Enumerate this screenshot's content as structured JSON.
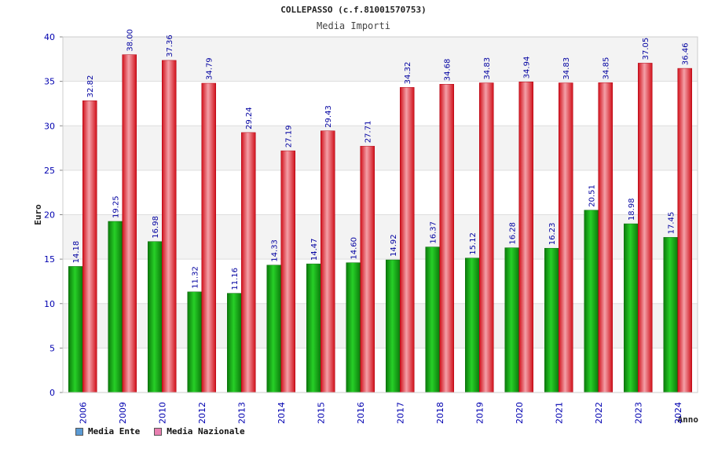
{
  "chart_data": {
    "type": "bar",
    "title": "COLLEPASSO (c.f.81001570753)",
    "subtitle": "Media Importi",
    "ylabel": "Euro",
    "xlabel": "Anno",
    "ylim": [
      0,
      40
    ],
    "yticks": [
      0,
      5,
      10,
      15,
      20,
      25,
      30,
      35,
      40
    ],
    "categories": [
      "2006",
      "2009",
      "2010",
      "2012",
      "2013",
      "2014",
      "2015",
      "2016",
      "2017",
      "2018",
      "2019",
      "2020",
      "2021",
      "2022",
      "2023",
      "2024"
    ],
    "series": [
      {
        "name": "Media Ente",
        "color": "#17a017",
        "legend_color": "#5b9bd5",
        "values": [
          14.18,
          19.25,
          16.98,
          11.32,
          11.16,
          14.33,
          14.47,
          14.6,
          14.92,
          16.37,
          15.12,
          16.28,
          16.23,
          20.51,
          18.98,
          17.45
        ],
        "labels": [
          "14.18",
          "19.25",
          "16.98",
          "11.32",
          "11.16",
          "14.33",
          "14.47",
          "14.60",
          "14.92",
          "16.37",
          "15.12",
          "16.28",
          "16.23",
          "20.51",
          "18.98",
          "17.45"
        ]
      },
      {
        "name": "Media Nazionale",
        "color": "#e8131e",
        "legend_color": "#e87fb0",
        "values": [
          32.82,
          38.0,
          37.36,
          34.79,
          29.24,
          27.19,
          29.43,
          27.71,
          34.32,
          34.68,
          34.83,
          34.94,
          34.83,
          34.85,
          37.05,
          36.46
        ],
        "labels": [
          "32.82",
          "38.00",
          "37.36",
          "34.79",
          "29.24",
          "27.19",
          "29.43",
          "27.71",
          "34.32",
          "34.68",
          "34.83",
          "34.94",
          "34.83",
          "34.85",
          "37.05",
          "36.46"
        ]
      }
    ],
    "grid": true,
    "legend_position": "bottom-left"
  }
}
